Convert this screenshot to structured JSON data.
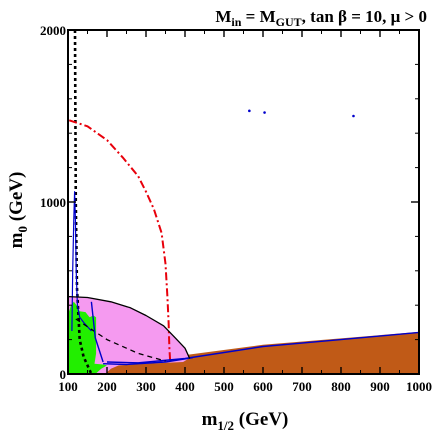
{
  "chart_data": {
    "type": "area",
    "title": {
      "main": "M",
      "sub1": "in",
      "eq": " = M",
      "sub2": "GUT",
      "rest": ", tan β = 10,  μ > 0"
    },
    "xlabel": {
      "main": "m",
      "sub": "1/2",
      "unit": " (GeV)"
    },
    "ylabel": {
      "main": "m",
      "sub": "0",
      "unit": " (GeV)"
    },
    "xlim": [
      100,
      1000
    ],
    "ylim": [
      0,
      2000
    ],
    "xticks": [
      100,
      200,
      300,
      400,
      500,
      600,
      700,
      800,
      900,
      1000
    ],
    "xtick_labels": [
      "100",
      "200",
      "300",
      "400",
      "500",
      "600",
      "700",
      "800",
      "900",
      "1000"
    ],
    "yticks": [
      0,
      1000,
      2000
    ],
    "ytick_labels": [
      "0",
      "1000",
      "2000"
    ],
    "grid": false,
    "legend": "none",
    "colors": {
      "brown": "#c05a17",
      "green": "#22ee00",
      "pink": "#f59af0",
      "red": "#e8000b",
      "blue": "#0000cc",
      "black": "#000000"
    },
    "regions": [
      {
        "color": "brown",
        "points": [
          [
            140,
            0
          ],
          [
            1000,
            0
          ],
          [
            1000,
            245
          ],
          [
            600,
            170
          ],
          [
            300,
            80
          ],
          [
            180,
            30
          ]
        ]
      },
      {
        "color": "pink",
        "points": [
          [
            102,
            0
          ],
          [
            102,
            450
          ],
          [
            150,
            445
          ],
          [
            210,
            420
          ],
          [
            260,
            385
          ],
          [
            300,
            340
          ],
          [
            345,
            280
          ],
          [
            375,
            210
          ],
          [
            400,
            150
          ],
          [
            410,
            90
          ],
          [
            395,
            70
          ],
          [
            300,
            60
          ],
          [
            230,
            50
          ],
          [
            210,
            30
          ],
          [
            195,
            0
          ]
        ]
      },
      {
        "color": "green",
        "points": [
          [
            102,
            0
          ],
          [
            102,
            360
          ],
          [
            108,
            400
          ],
          [
            115,
            420
          ],
          [
            122,
            400
          ],
          [
            130,
            365
          ],
          [
            145,
            360
          ],
          [
            155,
            330
          ],
          [
            165,
            340
          ],
          [
            172,
            330
          ],
          [
            172,
            120
          ],
          [
            168,
            60
          ],
          [
            190,
            55
          ],
          [
            200,
            50
          ],
          [
            185,
            30
          ],
          [
            175,
            10
          ],
          [
            170,
            0
          ]
        ]
      }
    ],
    "lines": [
      {
        "color": "black",
        "dash": "3 3",
        "width": 2.6,
        "points": [
          [
            118,
            2000
          ],
          [
            120,
            1000
          ],
          [
            123,
            500
          ],
          [
            130,
            200
          ],
          [
            140,
            100
          ],
          [
            150,
            50
          ],
          [
            160,
            0
          ]
        ]
      },
      {
        "color": "red",
        "dash": "8 3 2 3",
        "width": 2.0,
        "points": [
          [
            103,
            1475
          ],
          [
            150,
            1440
          ],
          [
            200,
            1360
          ],
          [
            240,
            1260
          ],
          [
            280,
            1150
          ],
          [
            300,
            1060
          ],
          [
            320,
            960
          ],
          [
            340,
            820
          ],
          [
            350,
            640
          ],
          [
            355,
            450
          ],
          [
            358,
            300
          ],
          [
            360,
            150
          ],
          [
            362,
            70
          ]
        ]
      },
      {
        "color": "blue",
        "dash": "",
        "width": 1.2,
        "points": [
          [
            110,
            250
          ],
          [
            112,
            600
          ],
          [
            115,
            900
          ],
          [
            117,
            1060
          ],
          [
            119,
            900
          ],
          [
            121,
            600
          ],
          [
            124,
            400
          ],
          [
            130,
            330
          ],
          [
            140,
            300
          ],
          [
            160,
            250
          ]
        ]
      },
      {
        "color": "blue",
        "dash": "",
        "width": 1.4,
        "points": [
          [
            200,
            70
          ],
          [
            280,
            65
          ],
          [
            400,
            90
          ],
          [
            600,
            160
          ],
          [
            800,
            200
          ],
          [
            1000,
            242
          ]
        ]
      },
      {
        "color": "blue",
        "dash": "",
        "width": 1.4,
        "points": [
          [
            190,
            60
          ],
          [
            250,
            55
          ],
          [
            350,
            70
          ],
          [
            420,
            95
          ]
        ]
      },
      {
        "color": "black",
        "dash": "",
        "width": 1.3,
        "points": [
          [
            102,
            450
          ],
          [
            150,
            445
          ],
          [
            210,
            420
          ],
          [
            260,
            385
          ],
          [
            300,
            340
          ],
          [
            345,
            280
          ],
          [
            375,
            210
          ],
          [
            400,
            150
          ],
          [
            412,
            90
          ]
        ]
      },
      {
        "color": "black",
        "dash": "5 4",
        "width": 1.3,
        "points": [
          [
            120,
            320
          ],
          [
            200,
            200
          ],
          [
            280,
            120
          ],
          [
            350,
            75
          ]
        ]
      },
      {
        "color": "blue",
        "dash": "",
        "width": 1.4,
        "points": [
          [
            160,
            420
          ],
          [
            170,
            210
          ],
          [
            190,
            70
          ]
        ]
      }
    ],
    "markers": [
      {
        "color": "blue",
        "x": 832,
        "y": 1500
      },
      {
        "color": "blue",
        "x": 604,
        "y": 1520
      },
      {
        "color": "blue",
        "x": 565,
        "y": 1530
      }
    ]
  }
}
